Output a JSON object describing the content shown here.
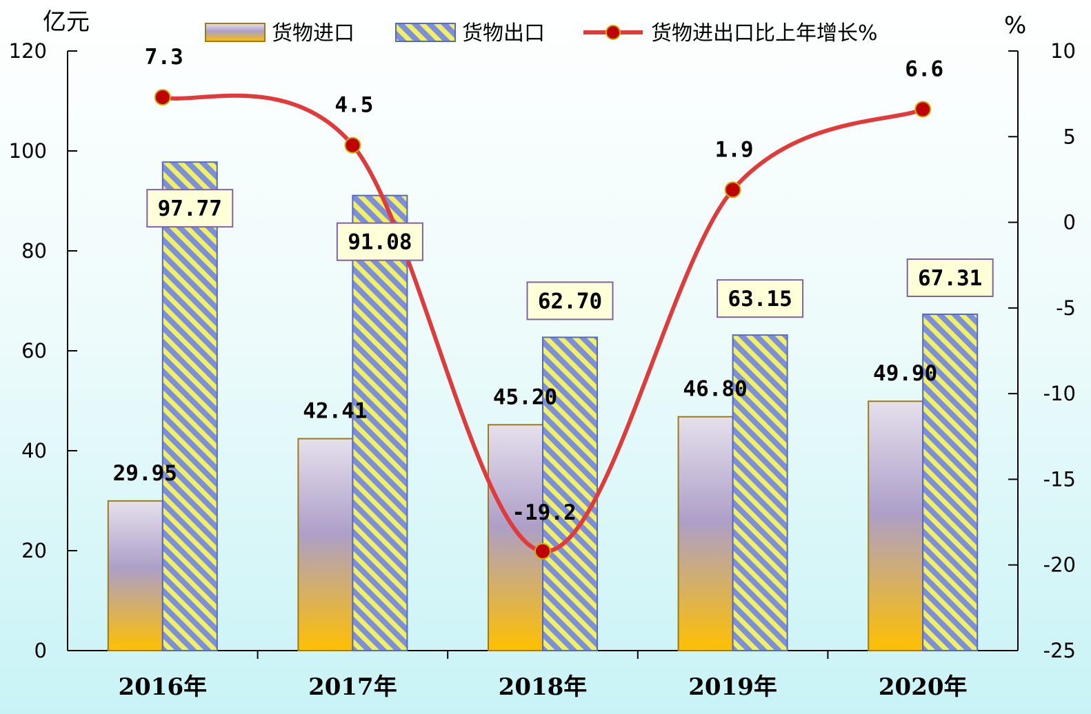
{
  "chart_data": {
    "type": "bar",
    "categories": [
      "2016年",
      "2017年",
      "2018年",
      "2019年",
      "2020年"
    ],
    "left_axis": {
      "label": "亿元",
      "range": [
        0,
        120
      ],
      "ticks": [
        "0",
        "20",
        "40",
        "60",
        "80",
        "100",
        "120"
      ]
    },
    "right_axis": {
      "label": "%",
      "range": [
        -25,
        10
      ],
      "ticks": [
        "-25",
        "-20",
        "-15",
        "-10",
        "-5",
        "0",
        "5",
        "10"
      ]
    },
    "series": [
      {
        "name": "货物进口",
        "kind": "bar",
        "axis": "left",
        "values": [
          29.95,
          42.41,
          45.2,
          46.8,
          49.9
        ],
        "labels": [
          "29.95",
          "42.41",
          "45.20",
          "46.80",
          "49.90"
        ]
      },
      {
        "name": "货物出口",
        "kind": "bar",
        "axis": "left",
        "values": [
          97.77,
          91.08,
          62.7,
          63.15,
          67.31
        ],
        "labels": [
          "97.77",
          "91.08",
          "62.70",
          "63.15",
          "67.31"
        ]
      },
      {
        "name": "货物进出口比上年增长%",
        "kind": "line",
        "axis": "right",
        "values": [
          7.3,
          4.5,
          -19.2,
          1.9,
          6.6
        ],
        "labels": [
          "7.3",
          "4.5",
          "-19.2",
          "1.9",
          "6.6"
        ]
      }
    ],
    "legend_position": "top",
    "grid": false,
    "colors": {
      "import_top": "#e6e0ec",
      "import_mid": "#ad9fc8",
      "import_bottom": "#ffc000",
      "import_border": "#9c7a18",
      "export_stripe": "#f0f060",
      "export_fill": "#7b8fdc",
      "export_border": "#5568c4",
      "line": "#e03a3a",
      "marker_fill": "#c00000",
      "marker_border": "#c9b000",
      "label_box_fill": "#ffffd8",
      "label_box_border": "#8060a8"
    }
  }
}
